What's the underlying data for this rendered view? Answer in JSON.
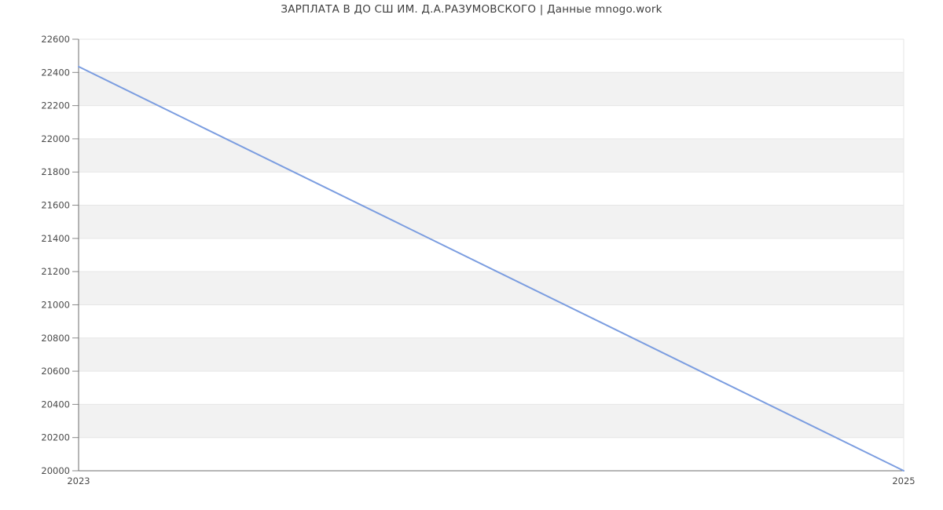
{
  "title": "ЗАРПЛАТА В ДО СШ ИМ. Д.А.РАЗУМОВСКОГО | Данные mnogo.work",
  "chart_data": {
    "type": "line",
    "title": "ЗАРПЛАТА В ДО СШ ИМ. Д.А.РАЗУМОВСКОГО | Данные mnogo.work",
    "xlabel": "",
    "ylabel": "",
    "x": [
      2023,
      2025
    ],
    "y": [
      22435,
      20000
    ],
    "xlim": [
      2023,
      2025
    ],
    "ylim": [
      20000,
      22600
    ],
    "ytick_step": 200,
    "yticks": [
      20000,
      20200,
      20400,
      20600,
      20800,
      21000,
      21200,
      21400,
      21600,
      21800,
      22000,
      22200,
      22400,
      22600
    ],
    "xticks": [
      2023,
      2025
    ],
    "legend": "none",
    "grid": "horizontal gridlines every 200 with alternating shaded bands",
    "colors": {
      "line": "#7b9de0",
      "band": "#f2f2f2",
      "gridline": "#e6e6e6",
      "axis": "#6e6e6e",
      "tick": "#8a8a8a",
      "label": "#4a4a4a",
      "title": "#3f3f3f",
      "background": "#ffffff"
    }
  }
}
